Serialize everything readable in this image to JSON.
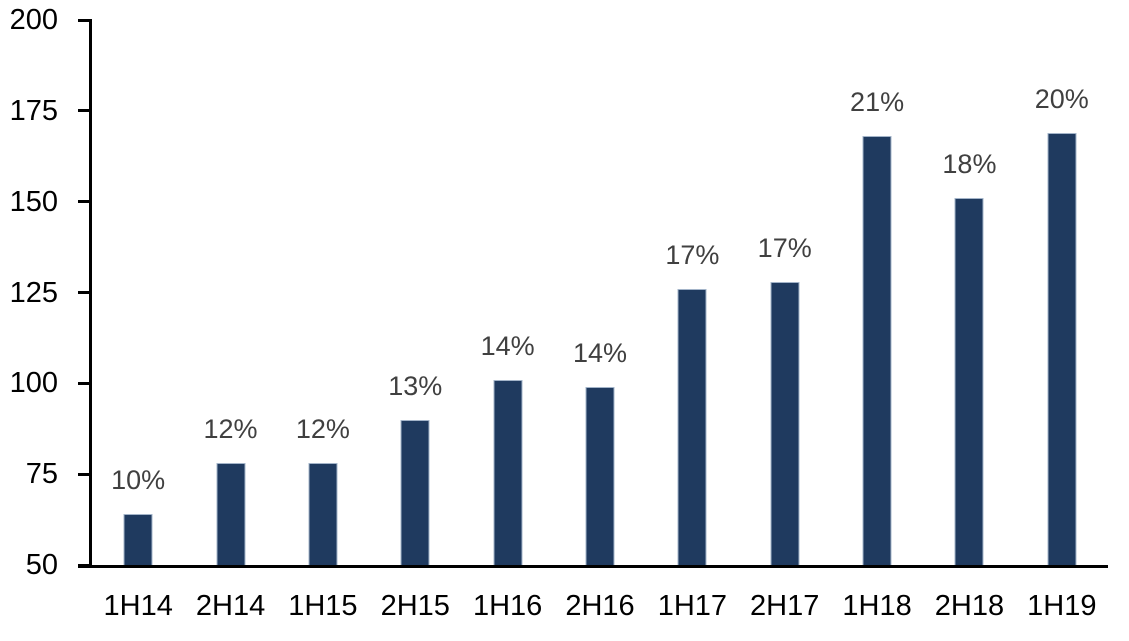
{
  "chart_data": {
    "type": "bar",
    "title": "",
    "xlabel": "",
    "ylabel": "",
    "categories": [
      "1H14",
      "2H14",
      "1H15",
      "2H15",
      "1H16",
      "2H16",
      "1H17",
      "2H17",
      "1H18",
      "2H18",
      "1H19"
    ],
    "values": [
      64,
      78,
      78,
      90,
      101,
      99,
      126,
      128,
      168,
      151,
      169
    ],
    "bar_labels": [
      "10%",
      "12%",
      "12%",
      "13%",
      "14%",
      "14%",
      "17%",
      "17%",
      "21%",
      "18%",
      "20%"
    ],
    "ylim": [
      50,
      200
    ],
    "y_ticks": [
      50,
      75,
      100,
      125,
      150,
      175,
      200
    ],
    "grid": false,
    "legend": false,
    "colors": {
      "bar_fill": "#1f3a5f",
      "bar_border": "#a3b4c9",
      "data_label": "#404040",
      "axis_line": "#000000",
      "axis_text": "#000000",
      "background": "#ffffff"
    }
  }
}
